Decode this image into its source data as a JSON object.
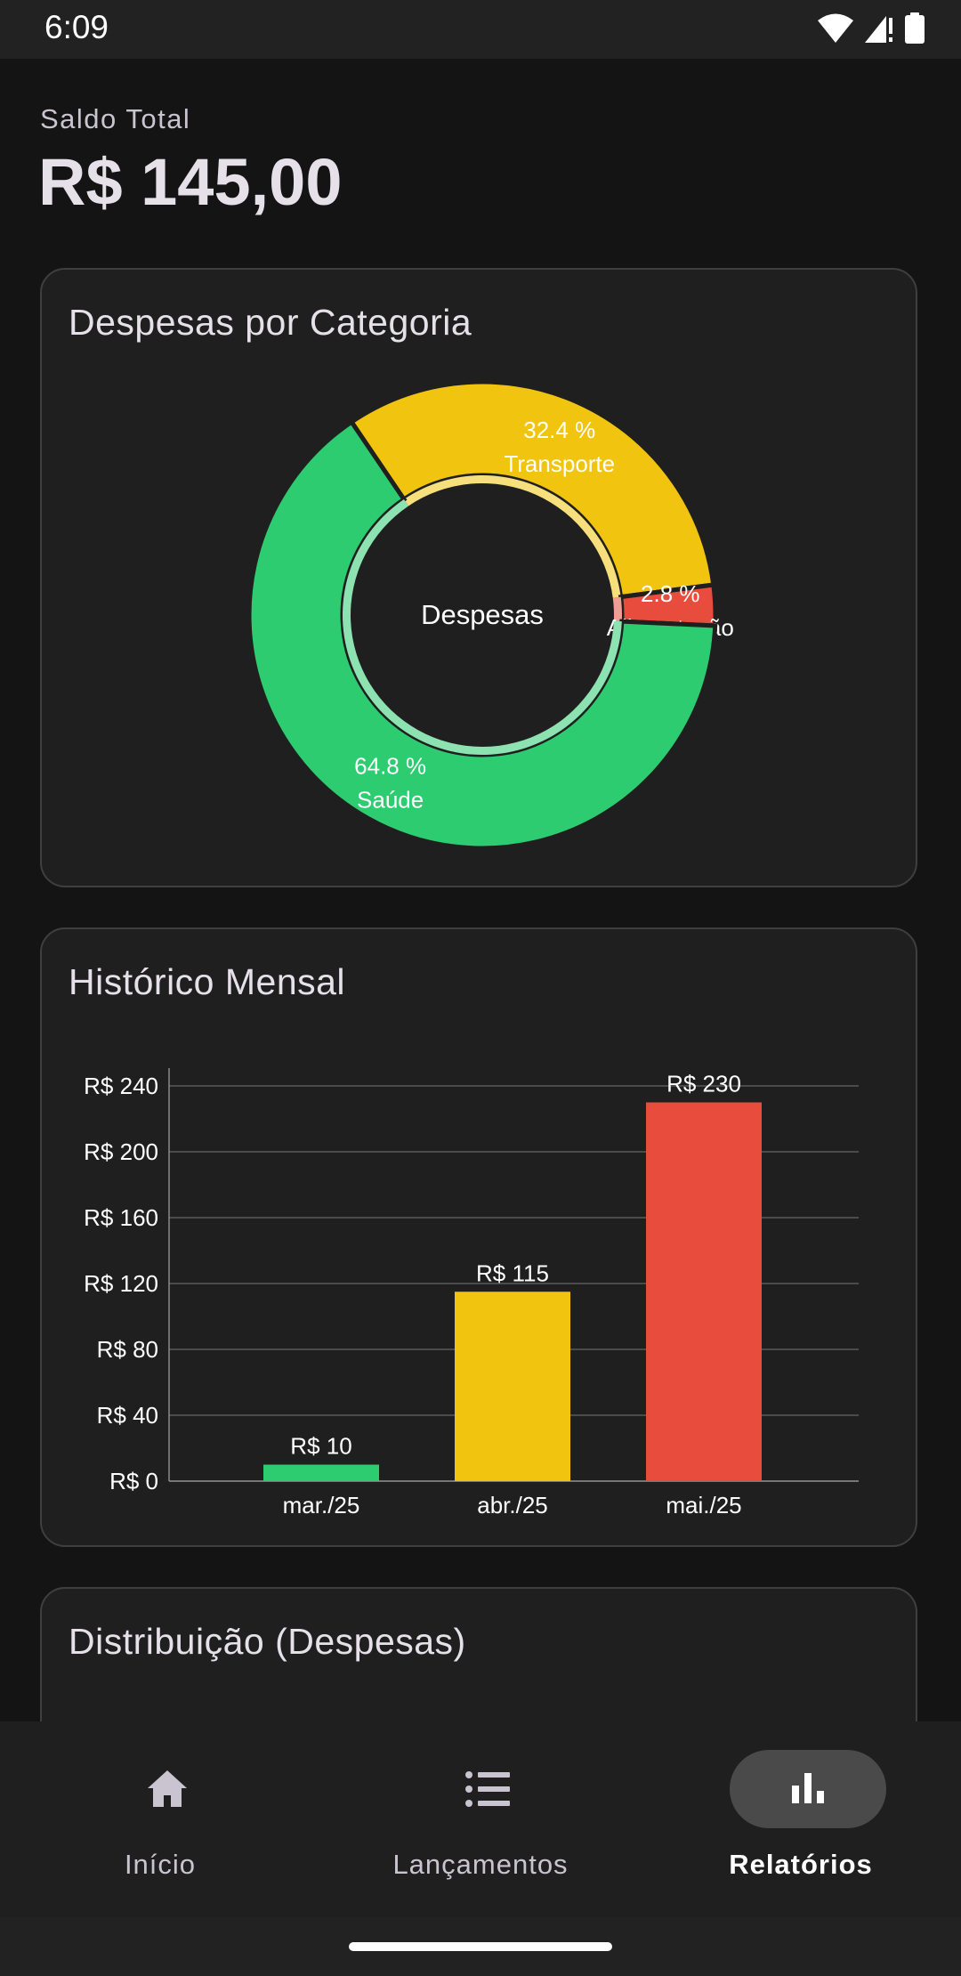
{
  "status_bar": {
    "time": "6:09"
  },
  "balance": {
    "label": "Saldo Total",
    "value": "R$ 145,00"
  },
  "expenses_by_category": {
    "title": "Despesas por Categoria",
    "center_label": "Despesas",
    "chart_data": {
      "type": "pie",
      "title": "Despesas por Categoria",
      "center_label": "Despesas",
      "slices": [
        {
          "label": "Transporte",
          "percent": 32.4,
          "percent_label": "32.4 %",
          "color": "#f1c40f"
        },
        {
          "label": "Alimentação",
          "percent": 2.8,
          "percent_label": "2.8 %",
          "color": "#e74c3c"
        },
        {
          "label": "Saúde",
          "percent": 64.8,
          "percent_label": "64.8 %",
          "color": "#2ecc71"
        }
      ]
    }
  },
  "monthly_history": {
    "title": "Histórico Mensal",
    "chart_data": {
      "type": "bar",
      "title": "Histórico Mensal",
      "categories": [
        "mar./25",
        "abr./25",
        "mai./25"
      ],
      "values": [
        10,
        115,
        230
      ],
      "value_labels": [
        "R$ 10",
        "R$ 115",
        "R$ 230"
      ],
      "colors": [
        "#2ecc71",
        "#f1c40f",
        "#e74c3c"
      ],
      "ylim": [
        0,
        240
      ],
      "yticks": [
        0,
        40,
        80,
        120,
        160,
        200,
        240
      ],
      "ytick_labels": [
        "R$ 0",
        "R$ 40",
        "R$ 80",
        "R$ 120",
        "R$ 160",
        "R$ 200",
        "R$ 240"
      ],
      "grid": true
    }
  },
  "distribution": {
    "title": "Distribuição (Despesas)"
  },
  "bottom_nav": {
    "items": [
      {
        "label": "Início",
        "icon": "home-icon",
        "active": false
      },
      {
        "label": "Lançamentos",
        "icon": "list-icon",
        "active": false
      },
      {
        "label": "Relatórios",
        "icon": "bar-chart-icon",
        "active": true
      }
    ]
  }
}
